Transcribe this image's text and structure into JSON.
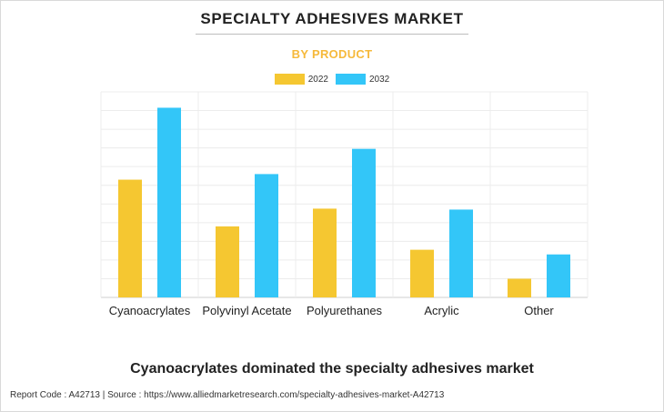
{
  "footer_text": "Report Code : A42713  |  Source : https://www.alliedmarketresearch.com/specialty-adhesives-market-A42713",
  "headline": "Cyanoacrylates dominated the specialty adhesives market",
  "chart_data": {
    "type": "bar",
    "title": "SPECIALTY ADHESIVES MARKET",
    "subtitle": "BY PRODUCT",
    "xlabel": "",
    "ylabel": "",
    "categories": [
      "Cyanoacrylates",
      "Polyvinyl Acetate",
      "Polyurethanes",
      "Acrylic",
      "Other"
    ],
    "series": [
      {
        "name": "2022",
        "color": "#f5c731",
        "values": [
          6.3,
          3.8,
          4.75,
          2.55,
          1.0
        ]
      },
      {
        "name": "2032",
        "color": "#33c6f8",
        "values": [
          10.15,
          6.6,
          7.95,
          4.7,
          2.3
        ]
      }
    ],
    "ylim": [
      0,
      11
    ],
    "grid": true,
    "legend_position": "top-center",
    "y_tick_labels_shown": false
  }
}
